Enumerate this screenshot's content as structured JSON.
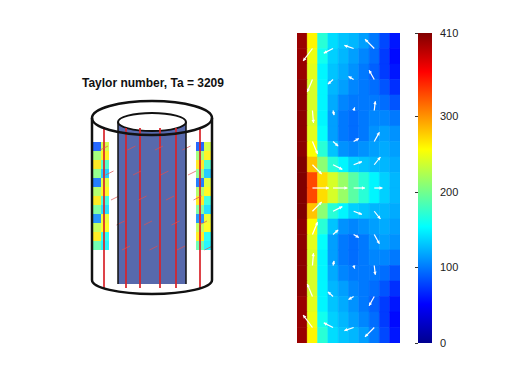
{
  "chart_data": {
    "type": "heatmap",
    "title": "Taylor number, Ta = 3209",
    "tick_labels": false,
    "cells": [
      [
        400,
        260,
        170,
        140,
        130,
        125,
        115,
        100,
        80,
        60
      ],
      [
        400,
        250,
        160,
        135,
        125,
        115,
        105,
        95,
        75,
        55
      ],
      [
        400,
        245,
        150,
        130,
        120,
        110,
        100,
        90,
        75,
        60
      ],
      [
        405,
        240,
        150,
        125,
        115,
        105,
        100,
        95,
        85,
        70
      ],
      [
        405,
        240,
        150,
        120,
        105,
        100,
        100,
        100,
        95,
        85
      ],
      [
        405,
        240,
        150,
        115,
        100,
        95,
        100,
        105,
        105,
        100
      ],
      [
        405,
        245,
        155,
        115,
        100,
        95,
        100,
        110,
        115,
        110
      ],
      [
        405,
        255,
        170,
        130,
        110,
        105,
        110,
        115,
        120,
        115
      ],
      [
        410,
        280,
        210,
        170,
        150,
        135,
        130,
        125,
        125,
        120
      ],
      [
        410,
        330,
        270,
        240,
        215,
        190,
        170,
        150,
        135,
        125
      ],
      [
        410,
        330,
        270,
        240,
        215,
        190,
        170,
        150,
        135,
        125
      ],
      [
        410,
        280,
        210,
        170,
        150,
        135,
        130,
        125,
        125,
        120
      ],
      [
        405,
        255,
        170,
        130,
        110,
        105,
        110,
        115,
        120,
        115
      ],
      [
        405,
        245,
        155,
        115,
        100,
        95,
        100,
        110,
        115,
        110
      ],
      [
        405,
        240,
        150,
        115,
        100,
        95,
        100,
        105,
        105,
        100
      ],
      [
        405,
        240,
        150,
        120,
        105,
        100,
        100,
        100,
        95,
        85
      ],
      [
        405,
        240,
        150,
        125,
        115,
        105,
        100,
        95,
        85,
        70
      ],
      [
        400,
        245,
        150,
        130,
        120,
        110,
        100,
        90,
        75,
        60
      ],
      [
        400,
        250,
        160,
        135,
        125,
        115,
        105,
        95,
        75,
        55
      ],
      [
        400,
        260,
        170,
        140,
        130,
        125,
        115,
        100,
        80,
        60
      ]
    ],
    "vectors": [
      [
        1.5,
        1,
        -0.9,
        0.8
      ],
      [
        3.5,
        1,
        -0.9,
        0.3
      ],
      [
        5.5,
        1,
        -0.9,
        -0.2
      ],
      [
        7.5,
        1,
        -0.9,
        -0.6
      ],
      [
        1.5,
        3,
        -0.5,
        0.8
      ],
      [
        3.5,
        3,
        -0.5,
        0.3
      ],
      [
        5.5,
        3,
        -0.5,
        -0.2
      ],
      [
        7.5,
        3,
        -0.5,
        -0.6
      ],
      [
        1.5,
        5,
        0.1,
        0.8
      ],
      [
        3.5,
        5,
        0.1,
        0.3
      ],
      [
        5.5,
        5,
        0.1,
        -0.2
      ],
      [
        7.5,
        5,
        0.1,
        -0.6
      ],
      [
        1.5,
        7,
        0.5,
        0.8
      ],
      [
        3.5,
        7,
        0.5,
        0.3
      ],
      [
        5.5,
        7,
        0.5,
        -0.2
      ],
      [
        7.5,
        7,
        0.5,
        -0.6
      ],
      [
        1.5,
        8.5,
        0.9,
        0.6
      ],
      [
        3.5,
        8.5,
        0.9,
        0.3
      ],
      [
        5.5,
        8.5,
        0.8,
        -0.2
      ],
      [
        7.5,
        8.5,
        0.6,
        -0.5
      ],
      [
        1.5,
        10,
        1.6,
        0
      ],
      [
        3.5,
        10,
        1.4,
        0
      ],
      [
        5.5,
        10,
        1.1,
        0
      ],
      [
        7.5,
        10,
        0.8,
        0
      ],
      [
        1.5,
        11.5,
        0.9,
        -0.6
      ],
      [
        3.5,
        11.5,
        0.9,
        -0.3
      ],
      [
        5.5,
        11.5,
        0.8,
        0.2
      ],
      [
        7.5,
        11.5,
        0.6,
        0.5
      ],
      [
        1.5,
        13,
        0.5,
        -0.8
      ],
      [
        3.5,
        13,
        0.5,
        -0.3
      ],
      [
        5.5,
        13,
        0.5,
        0.2
      ],
      [
        7.5,
        13,
        0.5,
        0.6
      ],
      [
        1.5,
        15,
        0.1,
        -0.8
      ],
      [
        3.5,
        15,
        0.1,
        -0.3
      ],
      [
        5.5,
        15,
        0.1,
        0.2
      ],
      [
        7.5,
        15,
        0.1,
        0.6
      ],
      [
        1.5,
        17,
        -0.5,
        -0.8
      ],
      [
        3.5,
        17,
        -0.5,
        -0.3
      ],
      [
        5.5,
        17,
        -0.5,
        0.2
      ],
      [
        7.5,
        17,
        -0.5,
        0.6
      ],
      [
        1.5,
        19,
        -0.9,
        -0.8
      ],
      [
        3.5,
        19,
        -0.9,
        -0.3
      ],
      [
        5.5,
        19,
        -0.9,
        0.2
      ],
      [
        7.5,
        19,
        -0.9,
        0.6
      ]
    ],
    "colorbar": {
      "range": [
        0,
        410
      ],
      "ticks": [
        0,
        100,
        200,
        300,
        410
      ]
    }
  }
}
